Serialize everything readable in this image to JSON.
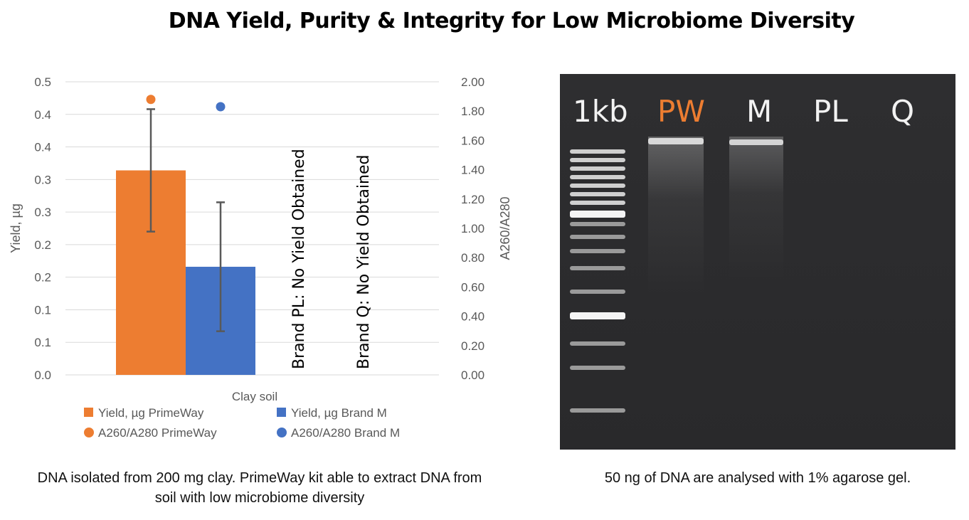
{
  "title": "DNA Yield, Purity & Integrity for Low Microbiome Diversity",
  "chart_data": {
    "type": "bar",
    "categories": [
      "Clay soil"
    ],
    "xlabel": "Clay soil",
    "ylabel": "Yield, µg",
    "y2label": "A260/A280",
    "ylim": [
      0,
      0.45
    ],
    "y_ticks": [
      "0.0",
      "0.1",
      "0.1",
      "0.2",
      "0.2",
      "0.3",
      "0.3",
      "0.4",
      "0.4",
      "0.5"
    ],
    "y2lim": [
      0,
      2.0
    ],
    "y2_ticks": [
      "0.00",
      "0.20",
      "0.40",
      "0.60",
      "0.80",
      "1.00",
      "1.20",
      "1.40",
      "1.60",
      "1.80",
      "2.00"
    ],
    "grid": true,
    "colors": {
      "primeway": "#ED7D31",
      "brand_m": "#4472C4"
    },
    "bars": [
      {
        "name": "Yield, µg PrimeWay",
        "value": 0.314,
        "err": 0.094,
        "color": "#ED7D31"
      },
      {
        "name": "Yield, µg Brand M",
        "value": 0.166,
        "err": 0.099,
        "color": "#4472C4"
      }
    ],
    "points": [
      {
        "name": "A260/A280 PrimeWay",
        "value": 1.88,
        "color": "#ED7D31"
      },
      {
        "name": "A260/A280 Brand M",
        "value": 1.83,
        "color": "#4472C4"
      }
    ],
    "annotations": [
      "Brand PL: No Yield Obtained",
      "Brand Q: No Yield Obtained"
    ],
    "legend": [
      {
        "label": "Yield, µg PrimeWay",
        "marker": "square",
        "color": "#ED7D31"
      },
      {
        "label": "Yield, µg Brand M",
        "marker": "square",
        "color": "#4472C4"
      },
      {
        "label": "A260/A280 PrimeWay",
        "marker": "circle",
        "color": "#ED7D31"
      },
      {
        "label": "A260/A280 Brand M",
        "marker": "circle",
        "color": "#4472C4"
      }
    ],
    "legend_position": "bottom"
  },
  "chart_caption": "DNA isolated from 200 mg clay. PrimeWay kit able to extract DNA from soil with low microbiome diversity",
  "gel": {
    "lanes": [
      {
        "label": "1kb",
        "color": "#f2f2f2"
      },
      {
        "label": "PW",
        "color": "#ED7D31"
      },
      {
        "label": "M",
        "color": "#f2f2f2"
      },
      {
        "label": "PL",
        "color": "#f2f2f2"
      },
      {
        "label": "Q",
        "color": "#f2f2f2"
      }
    ],
    "caption": "50 ng of DNA are analysed with 1% agarose gel."
  }
}
